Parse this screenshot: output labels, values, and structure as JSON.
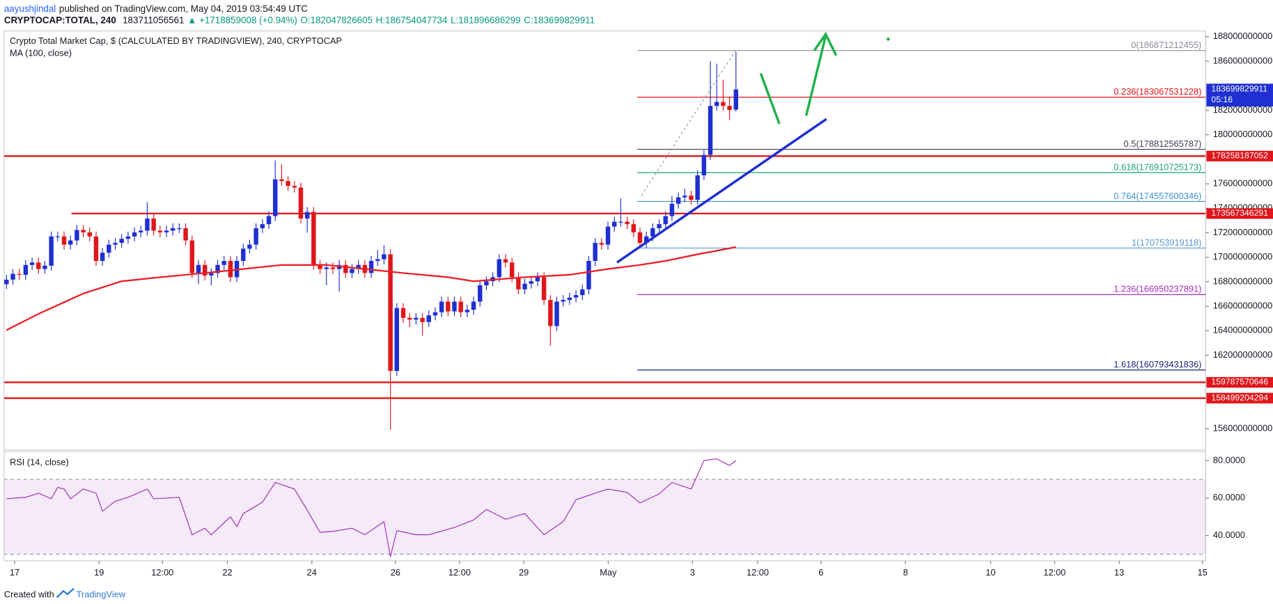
{
  "header": {
    "author": "aayushjindal",
    "published": "published on TradingView.com, May 04, 2019 03:54:49 UTC",
    "symbol": "CRYPTOCAP:TOTAL, 240",
    "last": "183711056561",
    "change": "▲ +1718859008 (+0.94%)",
    "ohlc": [
      "O:182047826605",
      "H:186754047734",
      "L:181896686299",
      "C:183699829911"
    ]
  },
  "chart_data": [
    {
      "type": "candlestick",
      "title": "Crypto Total Market Cap, $ (CALCULATED BY TRADINGVIEW), 240, CRYPTOCAP",
      "indicator_label": "MA (100, close)",
      "up_color": "#1f2fd1",
      "down_color": "#e0161b",
      "open": [
        167800000000,
        168170000000,
        168640000000,
        168570000000,
        169370000000,
        169570000000,
        169040000000,
        169310000000,
        171700000000,
        171700000000,
        171030000000,
        171370000000,
        172230000000,
        172030000000,
        171700000000,
        169700000000,
        170370000000,
        171030000000,
        171170000000,
        171500000000,
        171700000000,
        172030000000,
        172170000000,
        173160000000,
        172170000000,
        172030000000,
        172170000000,
        172370000000,
        172370000000,
        171370000000,
        168710000000,
        169370000000,
        168510000000,
        168710000000,
        169370000000,
        169700000000,
        168370000000,
        169700000000,
        170700000000,
        171030000000,
        172370000000,
        172700000000,
        173360000000,
        176360000000,
        176220000000,
        175820000000,
        175690000000,
        173160000000,
        173700000000,
        169370000000,
        169040000000,
        169170000000,
        169040000000,
        169370000000,
        168710000000,
        169040000000,
        169370000000,
        168710000000,
        169700000000,
        169840000000,
        170240000000,
        160720000000,
        165850000000,
        165050000000,
        164910000000,
        165050000000,
        164710000000,
        165250000000,
        165510000000,
        166380000000,
        165580000000,
        166380000000,
        165510000000,
        165710000000,
        166380000000,
        167710000000,
        168040000000,
        168370000000,
        169840000000,
        169570000000,
        168370000000,
        167380000000,
        167840000000,
        168040000000,
        168370000000,
        166510000000,
        164380000000,
        166380000000,
        166510000000,
        166710000000,
        166910000000,
        167380000000,
        169700000000,
        171170000000,
        171030000000,
        172500000000,
        172900000000,
        172900000000,
        172700000000,
        172030000000,
        171170000000,
        171700000000,
        172370000000,
        172700000000,
        173360000000,
        174360000000,
        174890000000,
        175030000000,
        174690000000,
        176690000000,
        178350000000,
        182350000000,
        182680000000,
        182350000000,
        182047826605
      ],
      "high": [
        168570000000,
        169040000000,
        169040000000,
        169770000000,
        169970000000,
        169970000000,
        169710000000,
        172100000000,
        172100000000,
        172100000000,
        171770000000,
        172630000000,
        172630000000,
        172430000000,
        172100000000,
        170770000000,
        171430000000,
        171570000000,
        171900000000,
        172100000000,
        172430000000,
        172570000000,
        174500000000,
        173560000000,
        172570000000,
        172570000000,
        172770000000,
        172770000000,
        172770000000,
        171770000000,
        169770000000,
        169770000000,
        169110000000,
        169770000000,
        170100000000,
        170100000000,
        170100000000,
        171100000000,
        171430000000,
        172770000000,
        173100000000,
        173760000000,
        177900000000,
        177600000000,
        176620000000,
        176220000000,
        176090000000,
        174100000000,
        174100000000,
        169770000000,
        169570000000,
        169570000000,
        169770000000,
        169770000000,
        169440000000,
        169770000000,
        169770000000,
        170100000000,
        170600000000,
        171000000000,
        170640000000,
        166250000000,
        166250000000,
        165450000000,
        165450000000,
        165450000000,
        165650000000,
        165910000000,
        166780000000,
        166780000000,
        166780000000,
        166780000000,
        166110000000,
        166780000000,
        168110000000,
        168440000000,
        168770000000,
        170240000000,
        170240000000,
        169970000000,
        168770000000,
        168240000000,
        168440000000,
        168770000000,
        168770000000,
        166910000000,
        166780000000,
        166910000000,
        167110000000,
        167310000000,
        167780000000,
        170100000000,
        171570000000,
        171570000000,
        172900000000,
        173300000000,
        174800000000,
        173300000000,
        173100000000,
        172430000000,
        172100000000,
        172770000000,
        173100000000,
        173760000000,
        175000000000,
        175290000000,
        175600000000,
        175430000000,
        177090000000,
        178750000000,
        186000000000,
        185800000000,
        184500000000,
        183100000000,
        186754047734
      ],
      "low": [
        167400000000,
        167770000000,
        168170000000,
        168170000000,
        168970000000,
        168640000000,
        168640000000,
        168910000000,
        171300000000,
        170630000000,
        170630000000,
        170970000000,
        171630000000,
        171300000000,
        169300000000,
        169300000000,
        169970000000,
        170630000000,
        170770000000,
        171100000000,
        171300000000,
        171630000000,
        171770000000,
        171770000000,
        171630000000,
        171630000000,
        171770000000,
        171970000000,
        170970000000,
        168310000000,
        167800000000,
        168110000000,
        167700000000,
        168310000000,
        168970000000,
        167970000000,
        167970000000,
        169300000000,
        170300000000,
        170630000000,
        171970000000,
        172300000000,
        172960000000,
        175820000000,
        175420000000,
        175290000000,
        172760000000,
        172000000000,
        168970000000,
        168640000000,
        167700000000,
        168640000000,
        167200000000,
        168310000000,
        168310000000,
        168640000000,
        168310000000,
        168310000000,
        169300000000,
        169440000000,
        155900000000,
        160320000000,
        164650000000,
        164300000000,
        164510000000,
        163600000000,
        164310000000,
        164850000000,
        165110000000,
        165180000000,
        165180000000,
        165110000000,
        165110000000,
        165310000000,
        165980000000,
        167310000000,
        167640000000,
        167970000000,
        169170000000,
        167970000000,
        166980000000,
        166980000000,
        167440000000,
        167640000000,
        166110000000,
        162800000000,
        163980000000,
        165980000000,
        166110000000,
        166310000000,
        166510000000,
        166980000000,
        169300000000,
        170630000000,
        170630000000,
        172100000000,
        172500000000,
        172300000000,
        171630000000,
        170770000000,
        170770000000,
        171300000000,
        171970000000,
        172300000000,
        172960000000,
        173960000000,
        174490000000,
        174290000000,
        174290000000,
        176290000000,
        177950000000,
        181950000000,
        181950000000,
        181200000000,
        181896686299
      ],
      "close": [
        168170000000,
        168640000000,
        168570000000,
        169370000000,
        169570000000,
        169040000000,
        169310000000,
        171700000000,
        171700000000,
        171030000000,
        171370000000,
        172230000000,
        172030000000,
        171700000000,
        169700000000,
        170370000000,
        171030000000,
        171170000000,
        171500000000,
        171700000000,
        172030000000,
        172170000000,
        173160000000,
        172170000000,
        172030000000,
        172170000000,
        172370000000,
        172370000000,
        171370000000,
        168710000000,
        169370000000,
        168510000000,
        168710000000,
        169370000000,
        169700000000,
        168370000000,
        169700000000,
        170700000000,
        171030000000,
        172370000000,
        172700000000,
        173360000000,
        176360000000,
        176220000000,
        175820000000,
        175690000000,
        173160000000,
        173700000000,
        169370000000,
        169040000000,
        169170000000,
        169040000000,
        169370000000,
        168710000000,
        169040000000,
        169370000000,
        168710000000,
        169700000000,
        169840000000,
        170240000000,
        160720000000,
        165850000000,
        165050000000,
        164910000000,
        165050000000,
        164710000000,
        165250000000,
        165510000000,
        166380000000,
        165580000000,
        166380000000,
        165510000000,
        165710000000,
        166380000000,
        167710000000,
        168040000000,
        168370000000,
        169840000000,
        169570000000,
        168370000000,
        167380000000,
        167840000000,
        168040000000,
        168370000000,
        166510000000,
        164380000000,
        166380000000,
        166510000000,
        166710000000,
        166910000000,
        167380000000,
        169700000000,
        171170000000,
        171030000000,
        172500000000,
        172900000000,
        172900000000,
        172700000000,
        172030000000,
        171170000000,
        171700000000,
        172370000000,
        172700000000,
        173360000000,
        174360000000,
        174890000000,
        175030000000,
        174690000000,
        176690000000,
        178350000000,
        182350000000,
        182680000000,
        182350000000,
        182020000000,
        183699829911
      ],
      "ma": {
        "color": "#e8202a",
        "x": [
          0,
          5,
          12,
          18,
          24,
          31,
          37,
          43,
          50,
          56,
          62,
          69,
          73,
          81,
          88,
          94,
          99,
          103,
          108,
          114
        ],
        "values": [
          164050000000,
          165380000000,
          167040000000,
          168040000000,
          168370000000,
          168710000000,
          169040000000,
          169370000000,
          169370000000,
          169040000000,
          168710000000,
          168370000000,
          168040000000,
          168370000000,
          168570000000,
          169040000000,
          169370000000,
          169700000000,
          170240000000,
          170830000000
        ]
      },
      "xlim": [
        -0.38,
        187.4
      ],
      "xticks": [
        {
          "value": 1.27,
          "label": "17"
        },
        {
          "value": 14.47,
          "label": "19"
        },
        {
          "value": 24.37,
          "label": "12:00"
        },
        {
          "value": 34.52,
          "label": "22"
        },
        {
          "value": 47.72,
          "label": "24"
        },
        {
          "value": 60.79,
          "label": "26"
        },
        {
          "value": 70.81,
          "label": "12:00"
        },
        {
          "value": 80.84,
          "label": "29"
        },
        {
          "value": 94.04,
          "label": "May"
        },
        {
          "value": 107.2,
          "label": "3"
        },
        {
          "value": 117.4,
          "label": "12:00"
        },
        {
          "value": 127.3,
          "label": "6"
        },
        {
          "value": 140.5,
          "label": "8"
        },
        {
          "value": 153.8,
          "label": "10"
        },
        {
          "value": 163.8,
          "label": "12:00"
        },
        {
          "value": 173.9,
          "label": "13"
        },
        {
          "value": 186.9,
          "label": "15"
        }
      ],
      "ylim": [
        154270000000,
        188470000000
      ],
      "yticks": [
        188000000000,
        186000000000,
        182000000000,
        180000000000,
        176000000000,
        174000000000,
        172000000000,
        170000000000,
        168000000000,
        166000000000,
        164000000000,
        162000000000,
        156000000000
      ],
      "levels": [
        {
          "price": 178258187052,
          "color": "#e0161b"
        },
        {
          "price": 173567346291,
          "color": "#e0161b"
        },
        {
          "price": 159787570646,
          "color": "#e0161b"
        },
        {
          "price": 158499204294,
          "color": "#e0161b"
        }
      ],
      "fib": [
        {
          "price": 186871212455,
          "label": "0(186871212455)",
          "color": "#8a8e99"
        },
        {
          "price": 183067531228,
          "label": "0.236(183067531228)",
          "color": "#e0161b"
        },
        {
          "price": 178812565787,
          "label": "0.5(178812565787)",
          "color": "#3b3f52"
        },
        {
          "price": 176910725173,
          "label": "0.618(176910725173)",
          "color": "#1aa36b"
        },
        {
          "price": 174557600346,
          "label": "0.764(174557600346)",
          "color": "#3d8fd6"
        },
        {
          "price": 170753919118,
          "label": "1(170753919118)",
          "color": "#5a98c9"
        },
        {
          "price": 166950237891,
          "label": "1.236(166950237891)",
          "color": "#a02fb8"
        },
        {
          "price": 160793431836,
          "label": "1.618(160793431836)",
          "color": "#1c2677"
        }
      ],
      "price_tag": {
        "value": 183699829911,
        "color": "#1f2fd1",
        "timer": "05:16"
      }
    },
    {
      "type": "line",
      "title": "RSI (14, close)",
      "color": "#a02fb8",
      "x": [
        0,
        3,
        5,
        7,
        8,
        9,
        10,
        12,
        14,
        15,
        17,
        19,
        22,
        23,
        27,
        29,
        31,
        32,
        35,
        36,
        37,
        40,
        42,
        45,
        47,
        49,
        51,
        54,
        56,
        59,
        60,
        61,
        64,
        66,
        70,
        73,
        75,
        78,
        81,
        84,
        87,
        89,
        92,
        94,
        97,
        99,
        102,
        104,
        107,
        109,
        111,
        113,
        114
      ],
      "values": [
        59.6,
        60.4,
        62.6,
        59.6,
        65.7,
        64.8,
        59.6,
        64.8,
        62.6,
        53.0,
        58.3,
        60.4,
        64.8,
        59.6,
        60.4,
        40.4,
        43.9,
        40.4,
        50.0,
        44.8,
        51.7,
        57.8,
        68.3,
        64.8,
        53.5,
        41.7,
        42.2,
        43.9,
        40.4,
        47.4,
        28.7,
        42.6,
        40.4,
        40.4,
        44.3,
        48.3,
        53.9,
        48.7,
        51.7,
        40.4,
        47.4,
        59.1,
        62.6,
        64.8,
        63.0,
        57.4,
        62.2,
        68.3,
        64.8,
        80.0,
        80.9,
        77.4,
        80.0
      ],
      "xlim": [
        -0.38,
        187.4
      ],
      "ylim": [
        26.5,
        84.8
      ],
      "yticks": [
        {
          "value": 80,
          "label": "80.0000"
        },
        {
          "value": 60,
          "label": "60.0000"
        },
        {
          "value": 40,
          "label": "40.0000"
        }
      ],
      "band": [
        30,
        70
      ]
    }
  ],
  "footer": {
    "prefix": "Created with",
    "brand": "TradingView"
  }
}
